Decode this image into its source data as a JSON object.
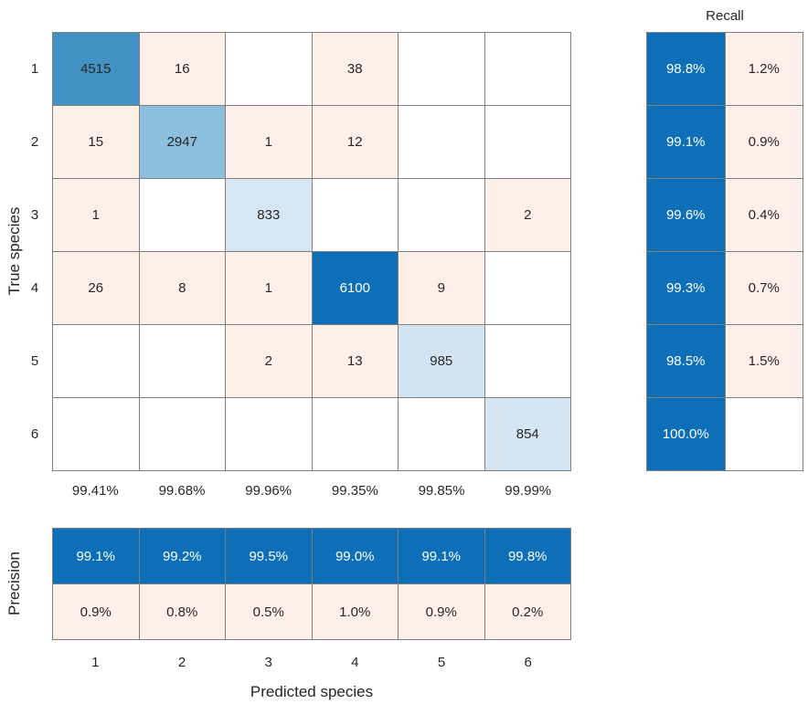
{
  "chart_data": {
    "type": "heatmap",
    "title": "",
    "xlabel": "Predicted species",
    "ylabel": "True species",
    "categories": [
      "1",
      "2",
      "3",
      "4",
      "5",
      "6"
    ],
    "matrix": [
      [
        4515,
        16,
        0,
        38,
        0,
        0
      ],
      [
        15,
        2947,
        1,
        12,
        0,
        0
      ],
      [
        1,
        0,
        833,
        0,
        0,
        2
      ],
      [
        26,
        8,
        1,
        6100,
        9,
        0
      ],
      [
        0,
        0,
        2,
        13,
        985,
        0
      ],
      [
        0,
        0,
        0,
        0,
        0,
        854
      ]
    ],
    "column_accuracy": [
      "99.41%",
      "99.68%",
      "99.96%",
      "99.35%",
      "99.85%",
      "99.99%"
    ],
    "recall": {
      "title": "Recall",
      "positive": [
        "98.8%",
        "99.1%",
        "99.6%",
        "99.3%",
        "98.5%",
        "100.0%"
      ],
      "negative": [
        "1.2%",
        "0.9%",
        "0.4%",
        "0.7%",
        "1.5%",
        ""
      ]
    },
    "precision": {
      "title": "Precision",
      "positive": [
        "99.1%",
        "99.2%",
        "99.5%",
        "99.0%",
        "99.1%",
        "99.8%"
      ],
      "negative": [
        "0.9%",
        "0.8%",
        "0.5%",
        "1.0%",
        "0.9%",
        "0.2%"
      ]
    },
    "legend_position": "none",
    "grid": true
  },
  "labels": {
    "y_axis": "True species",
    "x_axis": "Predicted species",
    "recall_title": "Recall",
    "precision_title": "Precision"
  },
  "display": {
    "row_labels": [
      "1",
      "2",
      "3",
      "4",
      "5",
      "6"
    ],
    "x_ticks": [
      "1",
      "2",
      "3",
      "4",
      "5",
      "6"
    ],
    "cells": [
      [
        "4515",
        "16",
        "",
        "38",
        "",
        ""
      ],
      [
        "15",
        "2947",
        "1",
        "12",
        "",
        ""
      ],
      [
        "1",
        "",
        "833",
        "",
        "",
        "2"
      ],
      [
        "26",
        "8",
        "1",
        "6100",
        "9",
        ""
      ],
      [
        "",
        "",
        "2",
        "13",
        "985",
        ""
      ],
      [
        "",
        "",
        "",
        "",
        "",
        "854"
      ]
    ],
    "col_accuracy": [
      "99.41%",
      "99.68%",
      "99.96%",
      "99.35%",
      "99.85%",
      "99.99%"
    ],
    "recall_pos": [
      "98.8%",
      "99.1%",
      "99.6%",
      "99.3%",
      "98.5%",
      "100.0%"
    ],
    "recall_neg": [
      "1.2%",
      "0.9%",
      "0.4%",
      "0.7%",
      "1.5%",
      ""
    ],
    "precision_pos": [
      "99.1%",
      "99.2%",
      "99.5%",
      "99.0%",
      "99.1%",
      "99.8%"
    ],
    "precision_neg": [
      "0.9%",
      "0.8%",
      "0.5%",
      "1.0%",
      "0.9%",
      "0.2%"
    ]
  },
  "colors": {
    "diag": [
      "#4292c6",
      "#8bbfdd",
      "#d6e7f3",
      "#0d6fb8",
      "#d2e4f1",
      "#d5e6f2"
    ],
    "offdiag": "#fdf0e9",
    "summary_blue": "#0d6fb8",
    "summary_pink": "#fdf0e9",
    "grid_line": "#7f7f7f",
    "text": "#262626",
    "text_on_blue": "#ffffff"
  }
}
